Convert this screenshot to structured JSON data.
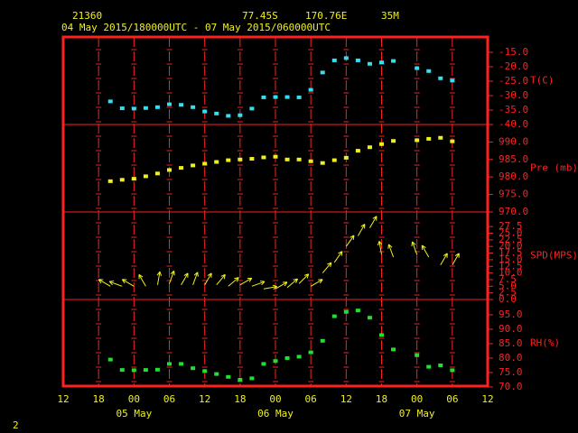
{
  "header": {
    "station": "21360",
    "lat": "77.45S",
    "lon": "170.76E",
    "elev": "35M",
    "period": "04 May 2015/180000UTC - 07 May 2015/060000UTC"
  },
  "footer": "2",
  "chart_data": [
    {
      "type": "scatter",
      "y_label": "T(C)",
      "color": "#33e0f0",
      "x": [
        20,
        22,
        24,
        26,
        28,
        30,
        32,
        34,
        36,
        38,
        40,
        42,
        44,
        46,
        48,
        50,
        52,
        54,
        56,
        58,
        60,
        62,
        64,
        66,
        68,
        70,
        72,
        74,
        76,
        78
      ],
      "values": [
        -32,
        -34.4,
        -34.5,
        -34.3,
        -34,
        -33,
        -33.2,
        -34,
        -35.5,
        -36.2,
        -37,
        -36.8,
        -34.5,
        -30.6,
        -30.5,
        -30.5,
        -30.6,
        -28,
        -22,
        -17.8,
        -17,
        -17.8,
        -19,
        -18.5,
        -18,
        null,
        -20.5,
        -21.5,
        -24,
        -24.8
      ],
      "xlim": [
        12,
        84
      ],
      "ylim": [
        -40,
        -9.7
      ],
      "yticks": [
        {
          "value": -40,
          "label": "-40.0"
        },
        {
          "value": -35,
          "label": "-35.0"
        },
        {
          "value": -30,
          "label": "-30.0"
        },
        {
          "value": -25,
          "label": "-25.0"
        },
        {
          "value": -20,
          "label": "-20.0"
        },
        {
          "value": -15,
          "label": "-15.0"
        }
      ]
    },
    {
      "type": "scatter",
      "y_label": "Pre (mb)",
      "color": "#f0f020",
      "x": [
        20,
        22,
        24,
        26,
        28,
        30,
        32,
        34,
        36,
        38,
        40,
        42,
        44,
        46,
        48,
        50,
        52,
        54,
        56,
        58,
        60,
        62,
        64,
        66,
        68,
        70,
        72,
        74,
        76,
        78
      ],
      "values": [
        978.8,
        979.2,
        979.5,
        980.2,
        981,
        982,
        982.6,
        983.3,
        983.8,
        984.3,
        984.8,
        985,
        985.2,
        985.6,
        985.8,
        985,
        985,
        984.5,
        984,
        984.8,
        985.5,
        987.5,
        988.5,
        989.4,
        990.3,
        null,
        990.5,
        990.9,
        991.2,
        990.2
      ],
      "xlim": [
        12,
        84
      ],
      "ylim": [
        970,
        995
      ],
      "yticks": [
        {
          "value": 970,
          "label": "970.0"
        },
        {
          "value": 975,
          "label": "975.0"
        },
        {
          "value": 980,
          "label": "980.0"
        },
        {
          "value": 985,
          "label": "985.0"
        },
        {
          "value": 990,
          "label": "990.0"
        }
      ]
    },
    {
      "type": "wind",
      "y_label": "SPD(MPS)",
      "color": "#f0f020",
      "x": [
        20,
        22,
        24,
        26,
        28,
        30,
        32,
        34,
        36,
        38,
        40,
        42,
        44,
        46,
        48,
        50,
        52,
        54,
        56,
        58,
        60,
        62,
        64,
        66,
        68,
        70,
        72,
        74,
        76,
        78
      ],
      "values": [
        5,
        5,
        5,
        5,
        5.5,
        6,
        5.5,
        5.5,
        5.5,
        5.5,
        5,
        5.5,
        5,
        4,
        4,
        4.5,
        6,
        5,
        10,
        14,
        20,
        24,
        27,
        17,
        16,
        null,
        17,
        16,
        13,
        13
      ],
      "directions": [
        300,
        290,
        300,
        330,
        10,
        20,
        30,
        20,
        30,
        40,
        50,
        60,
        70,
        80,
        60,
        50,
        45,
        60,
        40,
        35,
        35,
        30,
        30,
        350,
        340,
        null,
        340,
        330,
        30,
        30
      ],
      "xlim": [
        12,
        84
      ],
      "ylim": [
        0,
        33
      ],
      "yticks": [
        {
          "value": 0,
          "label": "0.0"
        },
        {
          "value": 2.5,
          "label": "2.5"
        },
        {
          "value": 5,
          "label": "5.0"
        },
        {
          "value": 7.5,
          "label": "7.5"
        },
        {
          "value": 10,
          "label": "10.0"
        },
        {
          "value": 12.5,
          "label": "12.5"
        },
        {
          "value": 15,
          "label": "15.0"
        },
        {
          "value": 17.5,
          "label": "17.5"
        },
        {
          "value": 20,
          "label": "20.0"
        },
        {
          "value": 22.5,
          "label": "22.5"
        },
        {
          "value": 25,
          "label": "25.0"
        },
        {
          "value": 27.5,
          "label": "27.5"
        }
      ]
    },
    {
      "type": "scatter",
      "y_label": "RH(%)",
      "color": "#20e030",
      "x": [
        20,
        22,
        24,
        26,
        28,
        30,
        32,
        34,
        36,
        38,
        40,
        42,
        44,
        46,
        48,
        50,
        52,
        54,
        56,
        58,
        60,
        62,
        64,
        66,
        68,
        70,
        72,
        74,
        76,
        78
      ],
      "values": [
        79.5,
        75.9,
        75.8,
        75.9,
        76,
        78,
        78,
        76.5,
        75.5,
        74.5,
        73.5,
        72.5,
        73,
        78,
        79,
        80,
        80.5,
        82,
        86,
        94.5,
        96,
        96.5,
        94,
        88,
        83,
        null,
        81,
        77,
        77.5,
        75.8
      ],
      "xlim": [
        12,
        84
      ],
      "ylim": [
        70,
        100.3
      ],
      "yticks": [
        {
          "value": 70,
          "label": "70.0"
        },
        {
          "value": 75,
          "label": "75.0"
        },
        {
          "value": 80,
          "label": "80.0"
        },
        {
          "value": 85,
          "label": "85.0"
        },
        {
          "value": 90,
          "label": "90.0"
        },
        {
          "value": 95,
          "label": "95.0"
        }
      ],
      "xticks": [
        {
          "value": 12,
          "label": "12"
        },
        {
          "value": 18,
          "label": "18"
        },
        {
          "value": 24,
          "label": "00"
        },
        {
          "value": 30,
          "label": "06"
        },
        {
          "value": 36,
          "label": "12"
        },
        {
          "value": 42,
          "label": "18"
        },
        {
          "value": 48,
          "label": "00"
        },
        {
          "value": 54,
          "label": "06"
        },
        {
          "value": 60,
          "label": "12"
        },
        {
          "value": 66,
          "label": "18"
        },
        {
          "value": 72,
          "label": "00"
        },
        {
          "value": 78,
          "label": "06"
        },
        {
          "value": 84,
          "label": "12"
        }
      ],
      "day_labels": [
        {
          "text": "05 May",
          "x": 24
        },
        {
          "text": "06 May",
          "x": 48
        },
        {
          "text": "07 May",
          "x": 72
        }
      ]
    }
  ]
}
